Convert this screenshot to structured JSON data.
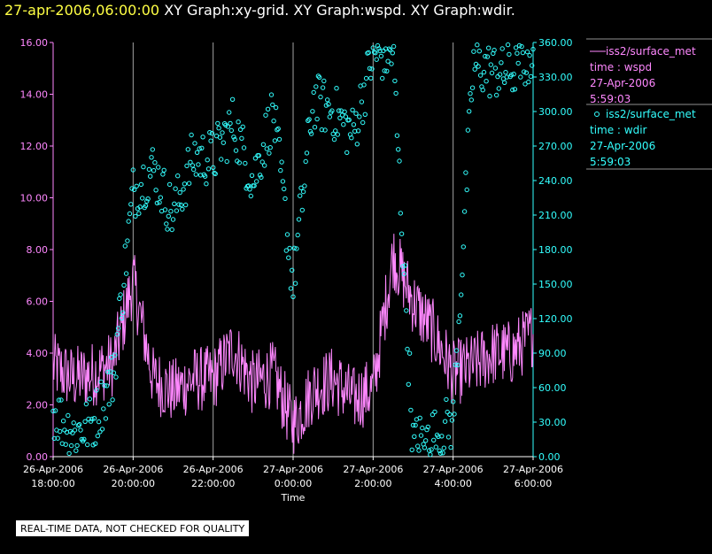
{
  "header": {
    "datetime": "27-apr-2006,06:00:00",
    "graphs": "XY Graph:xy-grid.  XY Graph:wspd.  XY Graph:wdir."
  },
  "notice": "REAL-TIME DATA, NOT CHECKED FOR QUALITY",
  "colors": {
    "wspd": "#ff88ff",
    "wdir": "#33ffff",
    "grid": "#cccccc",
    "axis": "#ffffff",
    "background": "#000000"
  },
  "chart_data": {
    "type": "line",
    "xlabel": "Time",
    "x_ticks": [
      {
        "line1": "26-Apr-2006",
        "line2": "18:00:00",
        "hour": 0
      },
      {
        "line1": "26-Apr-2006",
        "line2": "20:00:00",
        "hour": 2
      },
      {
        "line1": "26-Apr-2006",
        "line2": "22:00:00",
        "hour": 4
      },
      {
        "line1": "27-Apr-2006",
        "line2": "0:00:00",
        "hour": 6
      },
      {
        "line1": "27-Apr-2006",
        "line2": "2:00:00",
        "hour": 8
      },
      {
        "line1": "27-Apr-2006",
        "line2": "4:00:00",
        "hour": 10
      },
      {
        "line1": "27-Apr-2006",
        "line2": "6:00:00",
        "hour": 12
      }
    ],
    "xlim": [
      "26-Apr-2006 18:00:00",
      "27-Apr-2006 06:00:00"
    ],
    "grid": true,
    "legend_position": "right",
    "left_axis": {
      "ylim": [
        0,
        16
      ],
      "ticks": [
        "0.00",
        "2.00",
        "4.00",
        "6.00",
        "8.00",
        "10.00",
        "12.00",
        "14.00",
        "16.00"
      ]
    },
    "right_axis": {
      "ylim": [
        0,
        360
      ],
      "ticks": [
        "0.00",
        "30.00",
        "60.00",
        "90.00",
        "120.00",
        "150.00",
        "180.00",
        "210.00",
        "240.00",
        "270.00",
        "300.00",
        "330.00",
        "360.00"
      ]
    },
    "series": [
      {
        "name": "iss2/surface_met",
        "legend_lines": [
          "time : wspd",
          "27-Apr-2006",
          "5:59:03"
        ],
        "style": "line",
        "axis": "left",
        "x_hours": [
          0,
          0.5,
          1,
          1.5,
          2,
          2.5,
          3,
          3.5,
          4,
          4.5,
          5,
          5.5,
          6,
          6.5,
          7,
          7.5,
          8,
          8.5,
          9,
          9.5,
          10,
          10.5,
          11,
          11.5,
          12
        ],
        "values": [
          3.5,
          3.0,
          3.2,
          3.6,
          6.8,
          3.0,
          2.5,
          3.0,
          3.0,
          4.2,
          2.8,
          3.2,
          1.2,
          2.6,
          3.0,
          2.2,
          2.6,
          7.8,
          6.0,
          4.8,
          3.2,
          3.5,
          4.0,
          4.0,
          4.8
        ]
      },
      {
        "name": "iss2/surface_met",
        "legend_lines": [
          "time : wdir",
          "27-Apr-2006",
          "5:59:03"
        ],
        "style": "scatter",
        "axis": "right",
        "x_hours": [
          0,
          0.5,
          1,
          1.5,
          2,
          2.5,
          3,
          3.5,
          4,
          4.5,
          5,
          5.5,
          6,
          6.5,
          7,
          7.5,
          8,
          8.5,
          9,
          9.5,
          10,
          10.5,
          11,
          11.5,
          12
        ],
        "values": [
          40,
          20,
          30,
          70,
          230,
          250,
          210,
          260,
          260,
          290,
          240,
          300,
          150,
          310,
          300,
          280,
          350,
          350,
          10,
          20,
          30,
          340,
          335,
          335,
          350
        ]
      }
    ]
  }
}
